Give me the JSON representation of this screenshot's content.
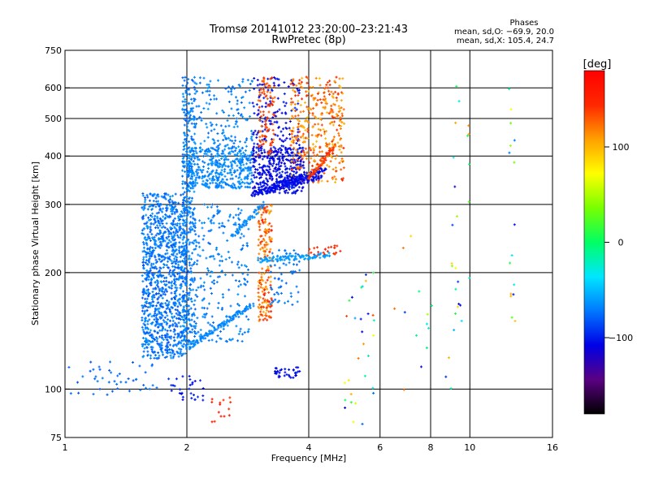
{
  "chart_data": {
    "type": "scatter",
    "title": "Tromsø 20141012 23:20:00–23:21:43",
    "subtitle": "RwPretec (8p)",
    "stats": {
      "heading": "Phases",
      "line1": "mean, sd,O: −69.9, 20.0",
      "line2": "mean, sd,X: 105.4, 24.7"
    },
    "xlabel": "Frequency [MHz]",
    "ylabel": "Stationary phase Virtual Height [km]",
    "xscale": "log",
    "yscale": "log",
    "xlim": [
      1,
      16
    ],
    "ylim": [
      75,
      750
    ],
    "xticks": [
      1,
      2,
      4,
      6,
      8,
      10,
      16
    ],
    "xtick_labels": [
      "1",
      "2",
      "4",
      "6",
      "8",
      "10",
      "16"
    ],
    "xgrid": [
      2,
      4,
      6,
      8,
      10
    ],
    "yticks": [
      75,
      100,
      200,
      300,
      400,
      500,
      600,
      750
    ],
    "ytick_labels": [
      "75",
      "100",
      "200",
      "300",
      "400",
      "500",
      "600",
      "750"
    ],
    "ygrid": [
      100,
      200,
      300,
      400,
      500,
      600
    ],
    "grid": true,
    "colorbar": {
      "label": "[deg]",
      "range": [
        -180,
        180
      ],
      "ticks": [
        100,
        0,
        -100
      ],
      "tick_labels": [
        "100",
        "0",
        "−100"
      ],
      "colormap": [
        "#000000",
        "#5a0082",
        "#0000e6",
        "#0078ff",
        "#00e6ff",
        "#00ff64",
        "#78ff00",
        "#ffff00",
        "#ffa000",
        "#ff2800",
        "#ff0000"
      ]
    },
    "series": [
      {
        "kind": "cloud",
        "f": [
          1.55,
          2.0
        ],
        "h": [
          120,
          320
        ],
        "phase": [
          -85,
          -60
        ],
        "n": 1100
      },
      {
        "kind": "cloud",
        "f": [
          1.95,
          2.1
        ],
        "h": [
          130,
          640
        ],
        "phase": [
          -80,
          -60
        ],
        "n": 380
      },
      {
        "kind": "cloud",
        "f": [
          2.0,
          2.9
        ],
        "h": [
          330,
          420
        ],
        "phase": [
          -75,
          -60
        ],
        "n": 420
      },
      {
        "kind": "cloud",
        "f": [
          2.1,
          2.9
        ],
        "h": [
          420,
          640
        ],
        "phase": [
          -78,
          -60
        ],
        "n": 140
      },
      {
        "kind": "cloud",
        "f": [
          2.1,
          2.85
        ],
        "h": [
          130,
          300
        ],
        "phase": [
          -78,
          -62
        ],
        "n": 220
      },
      {
        "kind": "cloud",
        "f": [
          2.9,
          3.9
        ],
        "h": [
          320,
          420
        ],
        "phase": [
          -115,
          -95
        ],
        "n": 380
      },
      {
        "kind": "cloud",
        "f": [
          2.9,
          3.8
        ],
        "h": [
          400,
          640
        ],
        "phase": [
          -115,
          -95
        ],
        "n": 160
      },
      {
        "kind": "cloud",
        "f": [
          3.0,
          3.25
        ],
        "h": [
          150,
          300
        ],
        "phase": [
          100,
          150
        ],
        "n": 190
      },
      {
        "kind": "cloud",
        "f": [
          3.0,
          3.3
        ],
        "h": [
          400,
          640
        ],
        "phase": [
          120,
          150
        ],
        "n": 90
      },
      {
        "kind": "cloud",
        "f": [
          3.6,
          4.9
        ],
        "h": [
          340,
          640
        ],
        "phase": [
          95,
          150
        ],
        "n": 360
      },
      {
        "kind": "cloud",
        "f": [
          4.0,
          4.8
        ],
        "h": [
          220,
          235
        ],
        "phase": [
          140,
          150
        ],
        "n": 25
      },
      {
        "kind": "cloud",
        "f": [
          3.2,
          3.8
        ],
        "h": [
          165,
          230
        ],
        "phase": [
          -80,
          -65
        ],
        "n": 60
      },
      {
        "kind": "cloud",
        "f": [
          3.3,
          3.8
        ],
        "h": [
          107,
          114
        ],
        "phase": [
          -110,
          -100
        ],
        "n": 35
      },
      {
        "kind": "cloud",
        "f": [
          1.0,
          1.7
        ],
        "h": [
          95,
          118
        ],
        "phase": [
          -85,
          -70
        ],
        "n": 45
      },
      {
        "kind": "cloud",
        "f": [
          1.8,
          2.2
        ],
        "h": [
          92,
          108
        ],
        "phase": [
          -110,
          -90
        ],
        "n": 30
      },
      {
        "kind": "cloud",
        "f": [
          2.3,
          2.6
        ],
        "h": [
          82,
          96
        ],
        "phase": [
          140,
          160
        ],
        "n": 14
      },
      {
        "kind": "cloud",
        "f": [
          4.9,
          5.8
        ],
        "h": [
          80,
          200
        ],
        "phase": [
          -110,
          140
        ],
        "n": 30
      },
      {
        "kind": "cloud",
        "f": [
          6.5,
          9.5
        ],
        "h": [
          88,
          250
        ],
        "phase": [
          -110,
          140
        ],
        "n": 18
      },
      {
        "kind": "cloud",
        "f": [
          9.0,
          10.0
        ],
        "h": [
          140,
          620
        ],
        "phase": [
          -110,
          120
        ],
        "n": 22
      },
      {
        "kind": "cloud",
        "f": [
          12.5,
          13.0
        ],
        "h": [
          140,
          620
        ],
        "phase": [
          -110,
          120
        ],
        "n": 16
      },
      {
        "kind": "trace",
        "f": [
          2.0,
          2.9
        ],
        "h": [
          128,
          165
        ],
        "phase": [
          -72,
          -62
        ],
        "n": 120
      },
      {
        "kind": "trace",
        "f": [
          2.9,
          4.3
        ],
        "h": [
          318,
          355
        ],
        "phase": [
          -110,
          -100
        ],
        "n": 120
      },
      {
        "kind": "trace",
        "f": [
          3.3,
          4.4
        ],
        "h": [
          335,
          370
        ],
        "phase": [
          -110,
          -100
        ],
        "n": 100
      },
      {
        "kind": "trace",
        "f": [
          4.0,
          4.6
        ],
        "h": [
          350,
          420
        ],
        "phase": [
          130,
          150
        ],
        "n": 60
      },
      {
        "kind": "trace",
        "f": [
          3.0,
          4.5
        ],
        "h": [
          215,
          222
        ],
        "phase": [
          -65,
          -55
        ],
        "n": 90
      },
      {
        "kind": "trace",
        "f": [
          2.6,
          3.1
        ],
        "h": [
          250,
          300
        ],
        "phase": [
          -70,
          -62
        ],
        "n": 50
      }
    ]
  }
}
